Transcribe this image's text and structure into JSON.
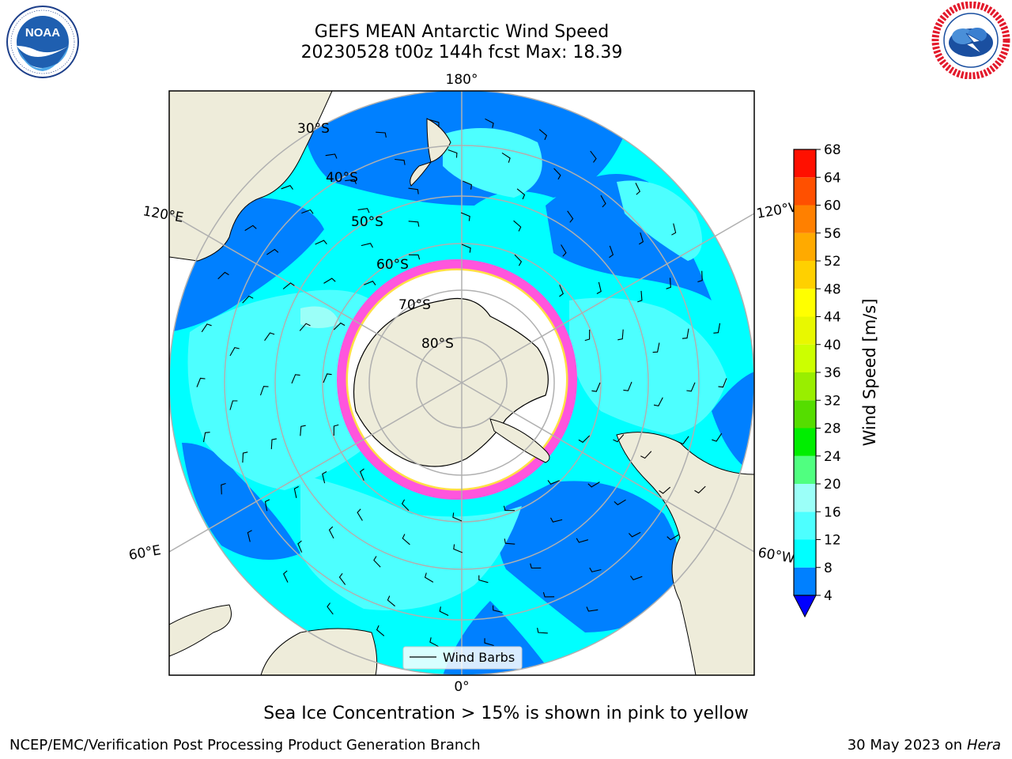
{
  "header": {
    "title_line1": "GEFS MEAN Antarctic Wind Speed",
    "title_line2": "20230528 t00z 144h fcst   Max: 18.39"
  },
  "logos": {
    "left": {
      "name": "noaa-logo",
      "text": "NOAA",
      "ring_text": "NATIONAL OCEANIC AND ATMOSPHERIC ADMINISTRATION · U.S. DEPARTMENT OF COMMERCE"
    },
    "right": {
      "name": "nws-logo",
      "ring_text": "NATIONAL WEATHER SERVICE"
    }
  },
  "map": {
    "longitude_labels": {
      "top": "180°",
      "bottom": "0°",
      "upper_left": "120°E",
      "upper_right": "120°W",
      "lower_left": "60°E",
      "lower_right": "60°W"
    },
    "latitude_labels": [
      "30°S",
      "40°S",
      "50°S",
      "60°S",
      "70°S",
      "80°S"
    ],
    "legend_label": "Wind Barbs",
    "colors": {
      "land": "#eeecda",
      "ice_shelf": "#ffffff",
      "ocean_4_8": "#0080ff",
      "ocean_8_12": "#00ffff",
      "ocean_12_16": "#4dffff",
      "ocean_16_20": "#9bfff8",
      "sea_ice_pink": "#ff55dd",
      "sea_ice_yellow": "#ffe044"
    }
  },
  "colorbar": {
    "label": "Wind Speed [m/s]",
    "ticks": [
      "4",
      "8",
      "12",
      "16",
      "20",
      "24",
      "28",
      "32",
      "36",
      "40",
      "44",
      "48",
      "52",
      "56",
      "60",
      "64",
      "68"
    ],
    "colors": [
      "#0080ff",
      "#00ffff",
      "#4dffff",
      "#9bfff8",
      "#50ff80",
      "#00ee00",
      "#55dd00",
      "#99ee00",
      "#ccff00",
      "#e8f800",
      "#ffff00",
      "#ffd000",
      "#ffaa00",
      "#ff8000",
      "#ff5000",
      "#ff1000"
    ],
    "extend_color": "#0000ff"
  },
  "caption": "Sea Ice Concentration > 15% is shown in pink to yellow",
  "footer": {
    "left": "NCEP/EMC/Verification Post Processing Product Generation Branch",
    "right_date": "30 May 2023 on",
    "right_host": "Hera"
  }
}
